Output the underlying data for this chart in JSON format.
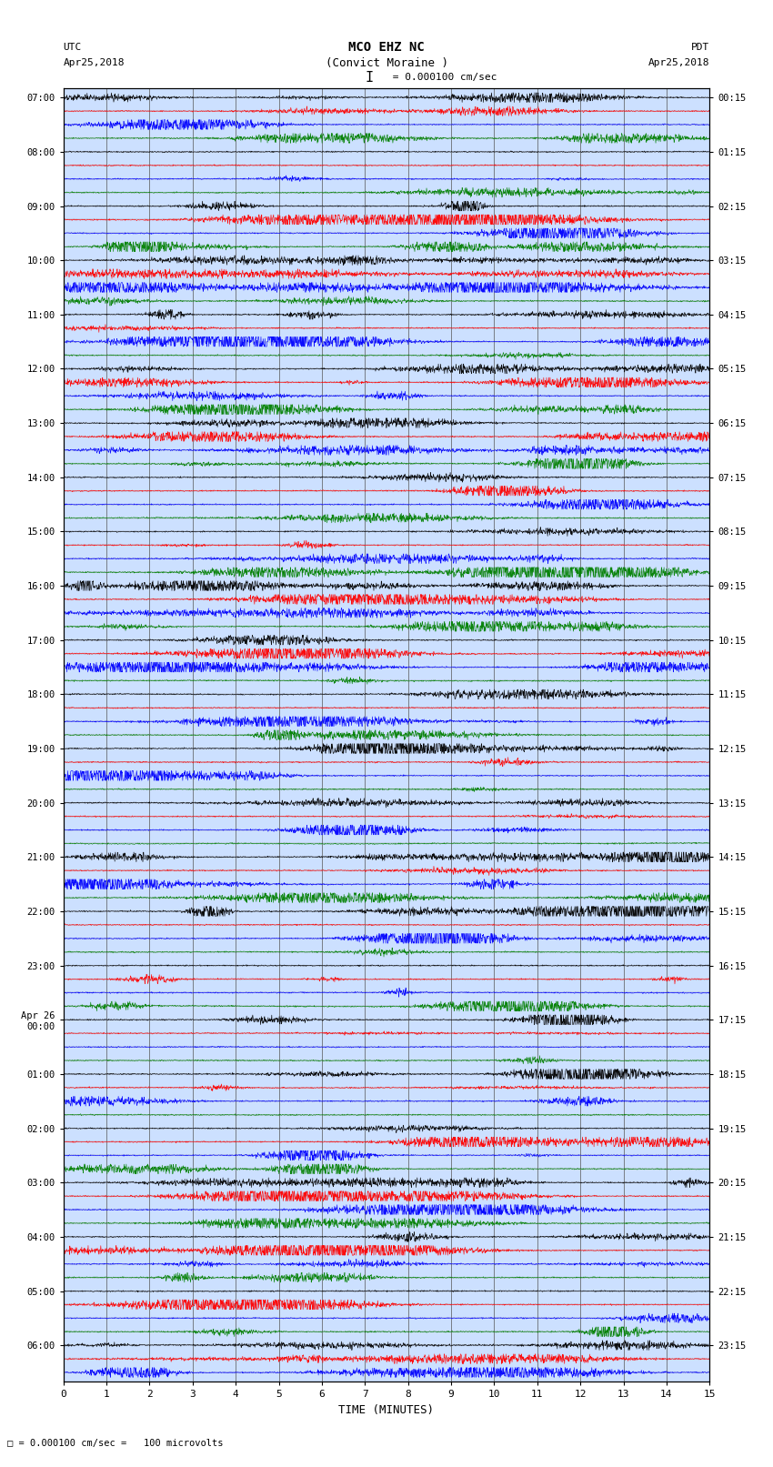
{
  "title_line1": "MCO EHZ NC",
  "title_line2": "(Convict Moraine )",
  "scale_label": "I = 0.000100 cm/sec",
  "utc_label": "UTC",
  "utc_date": "Apr25,2018",
  "pdt_label": "PDT",
  "pdt_date": "Apr25,2018",
  "bottom_label": "TIME (MINUTES)",
  "bottom_note": "= 0.000100 cm/sec =   100 microvolts",
  "xlabel_ticks": [
    0,
    1,
    2,
    3,
    4,
    5,
    6,
    7,
    8,
    9,
    10,
    11,
    12,
    13,
    14,
    15
  ],
  "xlim": [
    0,
    15
  ],
  "left_times": [
    "07:00",
    "08:00",
    "09:00",
    "10:00",
    "11:00",
    "12:00",
    "13:00",
    "14:00",
    "15:00",
    "16:00",
    "17:00",
    "18:00",
    "19:00",
    "20:00",
    "21:00",
    "22:00",
    "23:00",
    "Apr 26\n00:00",
    "01:00",
    "02:00",
    "03:00",
    "04:00",
    "05:00",
    "06:00"
  ],
  "right_times": [
    "00:15",
    "01:15",
    "02:15",
    "03:15",
    "04:15",
    "05:15",
    "06:15",
    "07:15",
    "08:15",
    "09:15",
    "10:15",
    "11:15",
    "12:15",
    "13:15",
    "14:15",
    "15:15",
    "16:15",
    "17:15",
    "18:15",
    "19:15",
    "20:15",
    "21:15",
    "22:15",
    "23:15"
  ],
  "trace_colors": [
    "black",
    "red",
    "blue",
    "green"
  ],
  "bg_color": "#cce0ff",
  "fig_bg": "#ffffff",
  "n_rows": 95,
  "seed": 42,
  "n_hours": 23,
  "traces_per_hour": 4
}
